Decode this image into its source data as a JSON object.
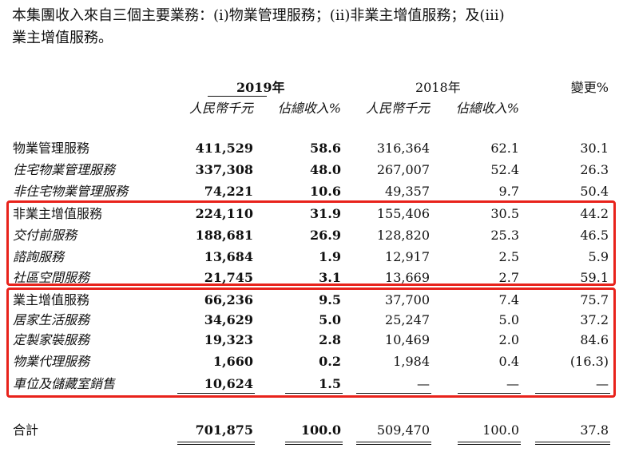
{
  "intro": {
    "line1": "本集團收入來自三個主要業務：(i)物業管理服務；(ii)非業主增值服務；及(iii)",
    "line2": "業主增值服務。"
  },
  "header": {
    "year2019": "2019年",
    "year2018": "2018年",
    "change": "變更%",
    "unit_rmb_2019": "人民幣千元",
    "unit_pct_2019": "佔總收入%",
    "unit_rmb_2018": "人民幣千元",
    "unit_pct_2018": "佔總收入%"
  },
  "rows": [
    {
      "label": "物業管理服務",
      "a": "411,529",
      "b": "58.6",
      "c": "316,364",
      "d": "62.1",
      "e": "30.1"
    },
    {
      "label": "住宅物業管理服務",
      "a": "337,308",
      "b": "48.0",
      "c": "267,007",
      "d": "52.4",
      "e": "26.3"
    },
    {
      "label": "非住宅物業管理服務",
      "a": "74,221",
      "b": "10.6",
      "c": "49,357",
      "d": "9.7",
      "e": "50.4"
    },
    {
      "label": "非業主增值服務",
      "a": "224,110",
      "b": "31.9",
      "c": "155,406",
      "d": "30.5",
      "e": "44.2"
    },
    {
      "label": "交付前服務",
      "a": "188,681",
      "b": "26.9",
      "c": "128,820",
      "d": "25.3",
      "e": "46.5"
    },
    {
      "label": "諮詢服務",
      "a": "13,684",
      "b": "1.9",
      "c": "12,917",
      "d": "2.5",
      "e": "5.9"
    },
    {
      "label": "社區空間服務",
      "a": "21,745",
      "b": "3.1",
      "c": "13,669",
      "d": "2.7",
      "e": "59.1"
    },
    {
      "label": "業主增值服務",
      "a": "66,236",
      "b": "9.5",
      "c": "37,700",
      "d": "7.4",
      "e": "75.7"
    },
    {
      "label": "居家生活服務",
      "a": "34,629",
      "b": "5.0",
      "c": "25,247",
      "d": "5.0",
      "e": "37.2"
    },
    {
      "label": "定製家裝服務",
      "a": "19,323",
      "b": "2.8",
      "c": "10,469",
      "d": "2.0",
      "e": "84.6"
    },
    {
      "label": "物業代理服務",
      "a": "1,660",
      "b": "0.2",
      "c": "1,984",
      "d": "0.4",
      "e": "(16.3)"
    },
    {
      "label": "車位及儲藏室銷售",
      "a": "10,624",
      "b": "1.5",
      "c": "—",
      "d": "—",
      "e": "—"
    }
  ],
  "total": {
    "label": "合計",
    "a": "701,875",
    "b": "100.0",
    "c": "509,470",
    "d": "100.0",
    "e": "37.8"
  },
  "colors": {
    "highlight_box": "#e8221b"
  }
}
